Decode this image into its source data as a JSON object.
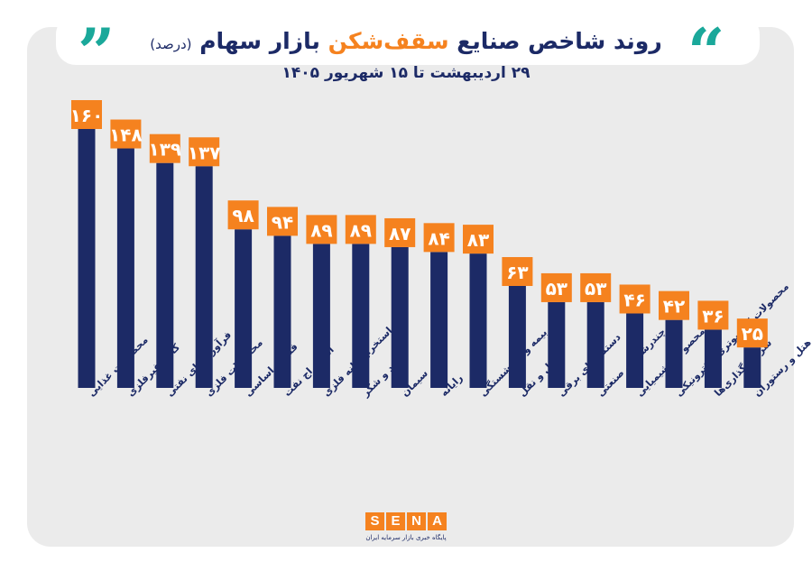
{
  "header": {
    "title_main": "روند شاخص صنایع ",
    "title_highlight": "سقف‌شکن",
    "title_tail": " بازار سهام ",
    "title_unit": "(درصد)",
    "subtitle": "۲۹ اردیبهشت تا ۱۵ شهریور ۱۴۰۵",
    "quote_open": "”",
    "quote_close": "“"
  },
  "colors": {
    "bar": "#1c2a66",
    "label_box": "#f5821f",
    "label_text": "#ffffff",
    "accent": "#1aa89a",
    "panel": "#ebebeb"
  },
  "chart_data": {
    "type": "bar",
    "title": "روند شاخص صنایع سقف‌شکن بازار سهام (درصد)",
    "categories": [
      "محصولات غذایی",
      "کانی غیرفلزی",
      "فرآورده‌های نفتی",
      "محصولات فلزی",
      "فلزات اساسی",
      "استخراج نفت",
      "استخراج کانه فلزی",
      "قند و شکر",
      "سیمان",
      "رایانه",
      "بیمه و بازنشستگی",
      "حمل و نقل",
      "دستگاه‌های برقی",
      "چندرشته‌ای صنعتی",
      "محصولات شیمیایی",
      "محصولات کامپیوتری الکترونیکی",
      "سرمایه‌گذاری‌ها",
      "هتل و رستوران"
    ],
    "values": [
      160,
      148,
      139,
      137,
      98,
      94,
      89,
      89,
      87,
      84,
      83,
      63,
      53,
      53,
      46,
      42,
      36,
      25
    ],
    "value_labels": [
      "۱۶۰",
      "۱۴۸",
      "۱۳۹",
      "۱۳۷",
      "۹۸",
      "۹۴",
      "۸۹",
      "۸۹",
      "۸۷",
      "۸۴",
      "۸۳",
      "۶۳",
      "۵۳",
      "۵۳",
      "۴۶",
      "۴۲",
      "۳۶",
      "۲۵"
    ],
    "xlabel": "",
    "ylabel": "",
    "ylim": [
      0,
      160
    ],
    "grid": false,
    "legend": "none"
  },
  "logo": {
    "letters": [
      "S",
      "E",
      "N",
      "A"
    ],
    "tagline": "پایگاه خبری بازار سرمایه ایران"
  }
}
